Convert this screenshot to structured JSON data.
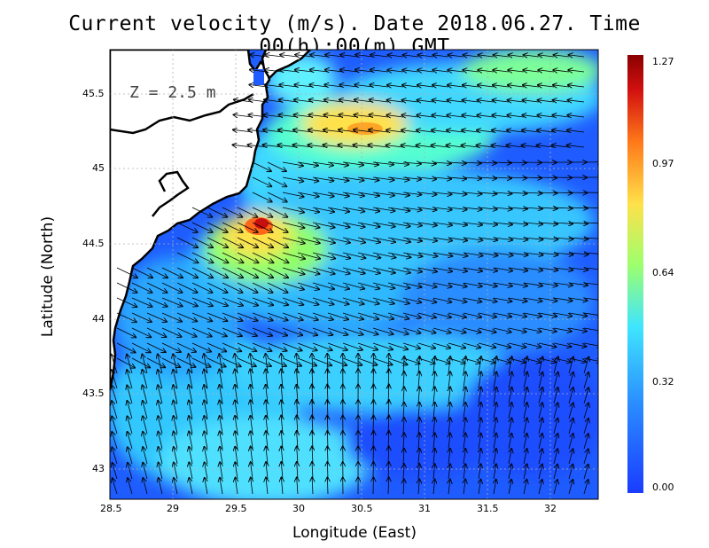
{
  "title": "Current velocity (m/s). Date 2018.06.27. Time 00(h):00(m) GMT",
  "depth_label": "Z = 2.5 m",
  "x_axis": {
    "label": "Longitude (East)",
    "ticks": [
      "28.5",
      "29",
      "29.5",
      "30",
      "30.5",
      "31",
      "31.5",
      "32"
    ],
    "range": [
      28.5,
      32.4
    ]
  },
  "y_axis": {
    "label": "Latitude (North)",
    "ticks": [
      "43",
      "43.5",
      "44",
      "44.5",
      "45",
      "45.5"
    ],
    "range": [
      42.8,
      45.8
    ]
  },
  "colorbar": {
    "ticks": [
      "1.27",
      "0.97",
      "0.64",
      "0.32",
      "0.00"
    ],
    "min": 0.0,
    "max": 1.27,
    "colors": [
      "#1a3cff",
      "#2a9bff",
      "#3fe5ff",
      "#b7ff5a",
      "#ffe14a",
      "#ff7a1a",
      "#c81010",
      "#8a0000"
    ]
  },
  "colors": {
    "land": "#ffffff",
    "coast": "#000000",
    "grid": "#9a9a9a"
  }
}
